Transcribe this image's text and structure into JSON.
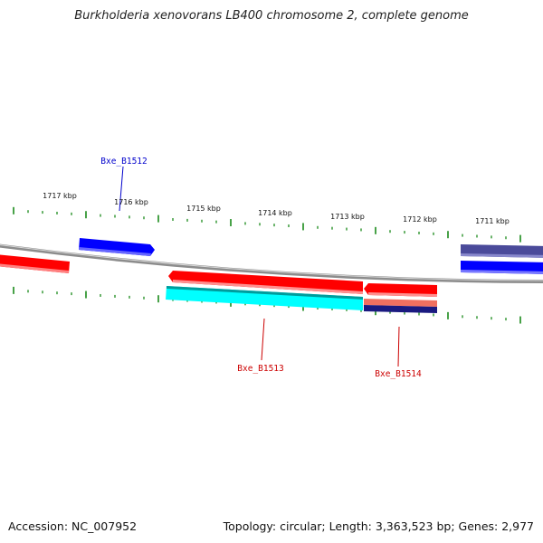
{
  "title": "Burkholderia xenovorans LB400 chromosome 2, complete genome",
  "footer": {
    "accession": "Accession: NC_007952",
    "summary": "Topology: circular; Length: 3,363,523 bp; Genes: 2,977"
  },
  "map": {
    "kbp_labels": [
      "1717 kbp",
      "1716 kbp",
      "1715 kbp",
      "1714 kbp",
      "1713 kbp",
      "1712 kbp",
      "1711 kbp"
    ],
    "gene_labels": [
      {
        "name": "Bxe_B1512",
        "color": "#0000cc"
      },
      {
        "name": "Bxe_B1513",
        "color": "#cc0000"
      },
      {
        "name": "Bxe_B1514",
        "color": "#cc0000"
      }
    ],
    "colors": {
      "backbone": "#8c8c8c",
      "tick": "#1a8a1a",
      "forward_gene": "#0000ff",
      "reverse_gene": "#ff0000",
      "feature_cyan": "#00ffff",
      "feature_salmon": "#f07060",
      "feature_navy": "#1a1a80",
      "feature_slate": "#4a4a9a"
    }
  }
}
